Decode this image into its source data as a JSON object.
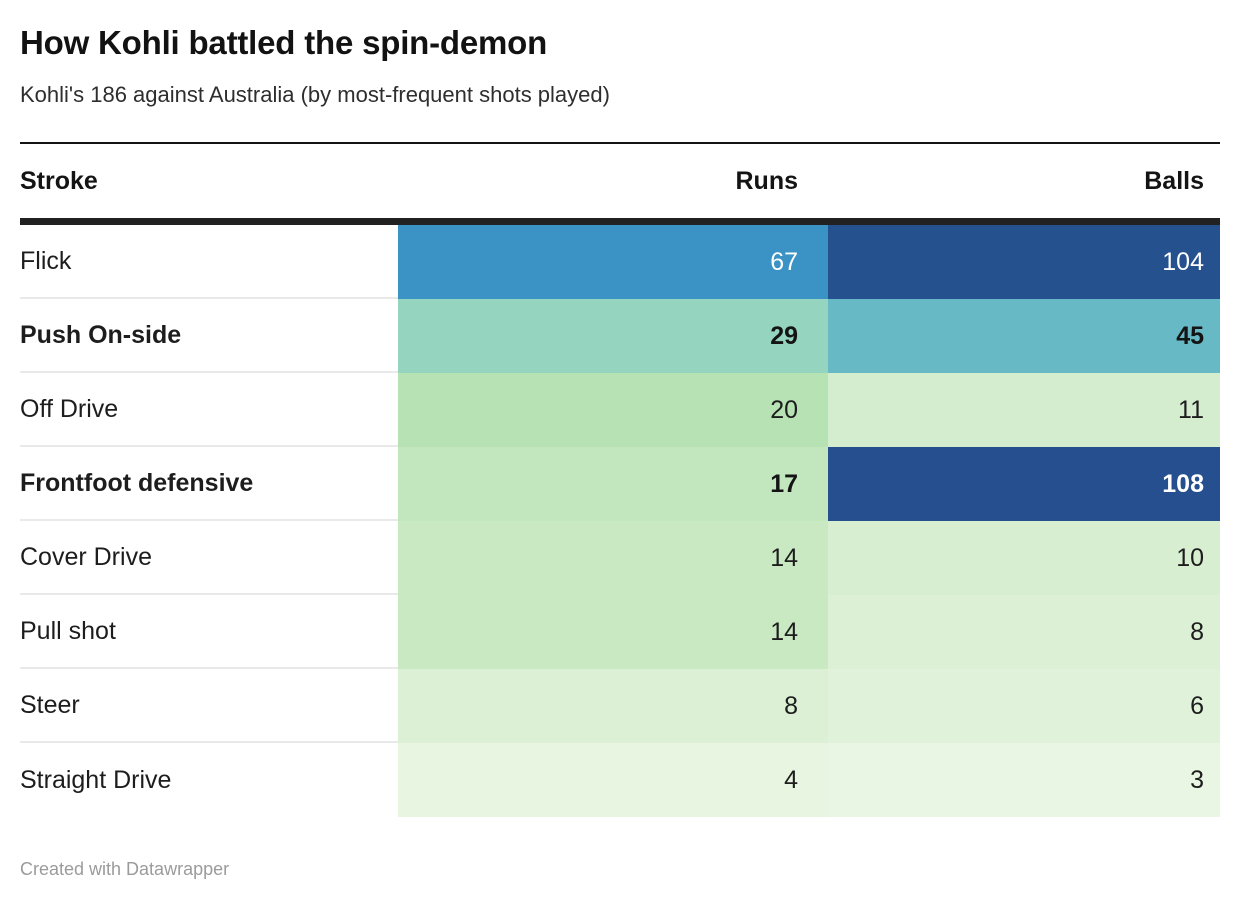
{
  "header": {
    "title": "How Kohli battled the spin-demon",
    "subtitle": "Kohli's 186 against Australia (by most-frequent shots played)"
  },
  "table": {
    "columns": [
      "Stroke",
      "Runs",
      "Balls"
    ],
    "rows": [
      {
        "stroke": "Flick",
        "runs": "67",
        "balls": "104",
        "bold": false,
        "runs_bg": "#3a92c5",
        "runs_fg": "#ffffff",
        "balls_bg": "#26518f",
        "balls_fg": "#ffffff"
      },
      {
        "stroke": "Push On-side",
        "runs": "29",
        "balls": "45",
        "bold": true,
        "runs_bg": "#95d5c0",
        "runs_fg": "#141414",
        "balls_bg": "#67b9c5",
        "balls_fg": "#141414"
      },
      {
        "stroke": "Off Drive",
        "runs": "20",
        "balls": "11",
        "bold": false,
        "runs_bg": "#b6e2b4",
        "runs_fg": "#1d1d1d",
        "balls_bg": "#d4edcf",
        "balls_fg": "#1d1d1d"
      },
      {
        "stroke": "Frontfoot defensive",
        "runs": "17",
        "balls": "108",
        "bold": true,
        "runs_bg": "#c2e6bd",
        "runs_fg": "#141414",
        "balls_bg": "#254f8e",
        "balls_fg": "#ffffff"
      },
      {
        "stroke": "Cover Drive",
        "runs": "14",
        "balls": "10",
        "bold": false,
        "runs_bg": "#c9e9c3",
        "runs_fg": "#1d1d1d",
        "balls_bg": "#d7eed1",
        "balls_fg": "#1d1d1d"
      },
      {
        "stroke": "Pull shot",
        "runs": "14",
        "balls": "8",
        "bold": false,
        "runs_bg": "#c9e9c3",
        "runs_fg": "#1d1d1d",
        "balls_bg": "#dbf0d5",
        "balls_fg": "#1d1d1d"
      },
      {
        "stroke": "Steer",
        "runs": "8",
        "balls": "6",
        "bold": false,
        "runs_bg": "#dbf0d5",
        "runs_fg": "#1d1d1d",
        "balls_bg": "#e0f2da",
        "balls_fg": "#1d1d1d"
      },
      {
        "stroke": "Straight Drive",
        "runs": "4",
        "balls": "3",
        "bold": false,
        "runs_bg": "#e7f5e1",
        "runs_fg": "#1d1d1d",
        "balls_bg": "#eaf6e4",
        "balls_fg": "#1d1d1d"
      }
    ]
  },
  "footer": {
    "attribution": "Created with Datawrapper"
  },
  "colors": {
    "rule_dark": "#212121",
    "row_divider": "#e9e9e9",
    "scale_low": "#eaf6e4",
    "scale_mid": "#95d5c0",
    "scale_high": "#254f8e"
  },
  "chart_data": {
    "type": "table",
    "subtype": "heatmap-table",
    "title": "How Kohli battled the spin-demon",
    "subtitle": "Kohli's 186 against Australia (by most-frequent shots played)",
    "columns": [
      "Stroke",
      "Runs",
      "Balls"
    ],
    "categories": [
      "Flick",
      "Push On-side",
      "Off Drive",
      "Frontfoot defensive",
      "Cover Drive",
      "Pull shot",
      "Steer",
      "Straight Drive"
    ],
    "series": [
      {
        "name": "Runs",
        "values": [
          67,
          29,
          20,
          17,
          14,
          14,
          8,
          4
        ]
      },
      {
        "name": "Balls",
        "values": [
          104,
          45,
          11,
          108,
          10,
          8,
          6,
          3
        ]
      }
    ],
    "emphasized_rows": [
      "Push On-side",
      "Frontfoot defensive"
    ],
    "color_scale": {
      "type": "continuous",
      "domain": [
        3,
        108
      ],
      "low": "#eaf6e4",
      "mid": "#95d5c0",
      "high": "#254f8e"
    },
    "attribution": "Created with Datawrapper"
  }
}
